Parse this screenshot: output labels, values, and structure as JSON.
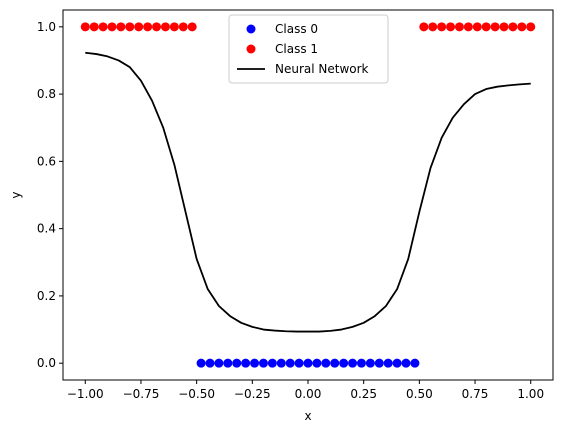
{
  "chart_data": {
    "type": "scatter",
    "title": "",
    "xlabel": "x",
    "ylabel": "y",
    "xlim": [
      -1.1,
      1.1
    ],
    "ylim": [
      -0.05,
      1.05
    ],
    "xticks": [
      -1.0,
      -0.75,
      -0.5,
      -0.25,
      0.0,
      0.25,
      0.5,
      0.75,
      1.0
    ],
    "xtick_labels": [
      "−1.00",
      "−0.75",
      "−0.50",
      "−0.25",
      "0.00",
      "0.25",
      "0.50",
      "0.75",
      "1.00"
    ],
    "yticks": [
      0.0,
      0.2,
      0.4,
      0.6,
      0.8,
      1.0
    ],
    "ytick_labels": [
      "0.0",
      "0.2",
      "0.4",
      "0.6",
      "0.8",
      "1.0"
    ],
    "grid": false,
    "legend_position": "upper-center",
    "series": [
      {
        "name": "Class 0",
        "kind": "scatter",
        "color": "#0000ff",
        "x": [
          -0.48,
          -0.44,
          -0.4,
          -0.36,
          -0.32,
          -0.28,
          -0.24,
          -0.2,
          -0.16,
          -0.12,
          -0.08,
          -0.04,
          0.0,
          0.04,
          0.08,
          0.12,
          0.16,
          0.2,
          0.24,
          0.28,
          0.32,
          0.36,
          0.4,
          0.44,
          0.48
        ],
        "y": [
          0,
          0,
          0,
          0,
          0,
          0,
          0,
          0,
          0,
          0,
          0,
          0,
          0,
          0,
          0,
          0,
          0,
          0,
          0,
          0,
          0,
          0,
          0,
          0,
          0
        ]
      },
      {
        "name": "Class 1",
        "kind": "scatter",
        "color": "#ff0000",
        "x": [
          -1.0,
          -0.96,
          -0.92,
          -0.88,
          -0.84,
          -0.8,
          -0.76,
          -0.72,
          -0.68,
          -0.64,
          -0.6,
          -0.56,
          -0.52,
          0.52,
          0.56,
          0.6,
          0.64,
          0.68,
          0.72,
          0.76,
          0.8,
          0.84,
          0.88,
          0.92,
          0.96,
          1.0
        ],
        "y": [
          1,
          1,
          1,
          1,
          1,
          1,
          1,
          1,
          1,
          1,
          1,
          1,
          1,
          1,
          1,
          1,
          1,
          1,
          1,
          1,
          1,
          1,
          1,
          1,
          1,
          1
        ]
      },
      {
        "name": "Neural Network",
        "kind": "line",
        "color": "#000000",
        "x": [
          -1.0,
          -0.95,
          -0.9,
          -0.85,
          -0.8,
          -0.75,
          -0.7,
          -0.65,
          -0.6,
          -0.55,
          -0.5,
          -0.45,
          -0.4,
          -0.35,
          -0.3,
          -0.25,
          -0.2,
          -0.15,
          -0.1,
          -0.05,
          0.0,
          0.05,
          0.1,
          0.15,
          0.2,
          0.25,
          0.3,
          0.35,
          0.4,
          0.45,
          0.5,
          0.55,
          0.6,
          0.65,
          0.7,
          0.75,
          0.8,
          0.85,
          0.9,
          0.95,
          1.0
        ],
        "y": [
          0.923,
          0.919,
          0.912,
          0.9,
          0.88,
          0.84,
          0.78,
          0.7,
          0.59,
          0.45,
          0.31,
          0.22,
          0.17,
          0.14,
          0.12,
          0.108,
          0.1,
          0.097,
          0.095,
          0.094,
          0.094,
          0.094,
          0.096,
          0.1,
          0.108,
          0.12,
          0.14,
          0.17,
          0.22,
          0.31,
          0.45,
          0.58,
          0.67,
          0.73,
          0.77,
          0.8,
          0.815,
          0.822,
          0.826,
          0.829,
          0.831
        ]
      }
    ]
  }
}
